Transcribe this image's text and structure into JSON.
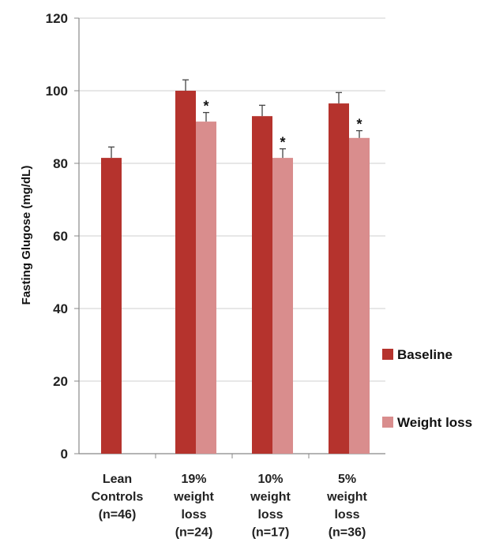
{
  "chart_data": {
    "type": "bar",
    "title": "",
    "xlabel": "",
    "ylabel": "Fasting Glugose (mg/dL)",
    "ylim": [
      0,
      120
    ],
    "yticks": [
      0,
      20,
      40,
      60,
      80,
      100,
      120
    ],
    "grid": true,
    "legend_position": "right",
    "categories": [
      [
        "Lean",
        "Controls",
        "(n=46)"
      ],
      [
        "19%",
        "weight",
        "loss",
        "(n=24)"
      ],
      [
        "10%",
        "weight",
        "loss",
        "(n=17)"
      ],
      [
        "5%",
        "weight",
        "loss",
        "(n=36)"
      ]
    ],
    "series": [
      {
        "name": "Baseline",
        "color": "#b5332d",
        "values": [
          81.5,
          100,
          93,
          96.5
        ],
        "errors": [
          3,
          3,
          3,
          3
        ]
      },
      {
        "name": "Weight loss",
        "color": "#d98d8d",
        "values": [
          null,
          91.5,
          81.5,
          87
        ],
        "errors": [
          null,
          2.5,
          2.5,
          2
        ]
      }
    ],
    "annotations": [
      {
        "category_index": 1,
        "series_index": 1,
        "text": "*"
      },
      {
        "category_index": 2,
        "series_index": 1,
        "text": "*"
      },
      {
        "category_index": 3,
        "series_index": 1,
        "text": "*"
      }
    ]
  }
}
